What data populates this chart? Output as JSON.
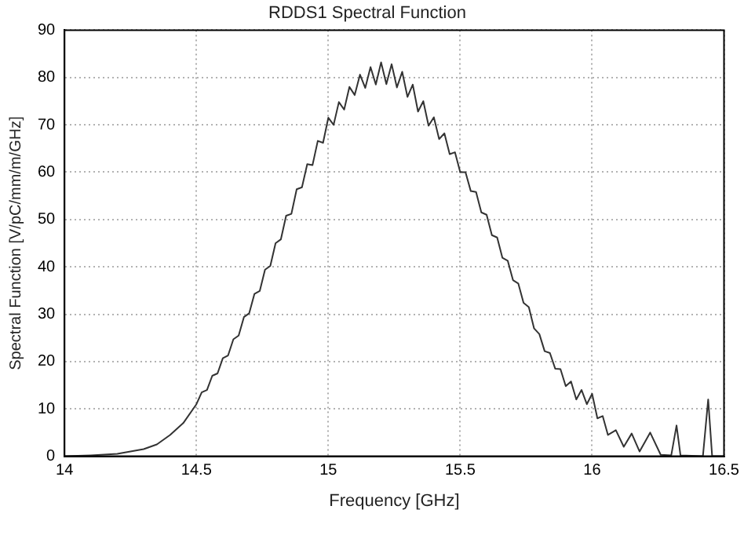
{
  "chart_data": {
    "type": "line",
    "title": "RDDS1 Spectral Function",
    "xlabel": "Frequency [GHz]",
    "ylabel": "Spectral Function [V/pC/mm/m/GHz]",
    "x": [
      14,
      14.1,
      14.2,
      14.3,
      14.35,
      14.4,
      14.45,
      14.5,
      14.52,
      14.54,
      14.56,
      14.58,
      14.6,
      14.62,
      14.64,
      14.66,
      14.68,
      14.7,
      14.72,
      14.74,
      14.76,
      14.78,
      14.8,
      14.82,
      14.84,
      14.86,
      14.88,
      14.9,
      14.92,
      14.94,
      14.96,
      14.98,
      15,
      15.02,
      15.04,
      15.06,
      15.08,
      15.1,
      15.12,
      15.14,
      15.16,
      15.18,
      15.2,
      15.22,
      15.24,
      15.26,
      15.28,
      15.3,
      15.32,
      15.34,
      15.36,
      15.38,
      15.4,
      15.42,
      15.44,
      15.46,
      15.48,
      15.5,
      15.52,
      15.54,
      15.56,
      15.58,
      15.6,
      15.62,
      15.64,
      15.66,
      15.68,
      15.7,
      15.72,
      15.74,
      15.76,
      15.78,
      15.8,
      15.82,
      15.84,
      15.86,
      15.88,
      15.9,
      15.92,
      15.94,
      15.96,
      15.98,
      16,
      16.02,
      16.04,
      16.06,
      16.09,
      16.12,
      16.15,
      16.18,
      16.22,
      16.26,
      16.3,
      16.32,
      16.335,
      16.42,
      16.44,
      16.455,
      16.5
    ],
    "series": [
      {
        "color": "#333333",
        "values": [
          0,
          0.2,
          0.5,
          1.5,
          2.5,
          4.5,
          7,
          11,
          13.5,
          14,
          17,
          17.5,
          20.7,
          21.3,
          24.7,
          25.5,
          29.4,
          30.2,
          34.3,
          34.9,
          39.4,
          40.2,
          45,
          45.8,
          50.8,
          51.2,
          56.4,
          56.8,
          61.7,
          61.5,
          66.6,
          66.2,
          71.5,
          70,
          74.8,
          73.2,
          78,
          76.3,
          80.6,
          77.8,
          82.2,
          78.5,
          83.2,
          78.6,
          82.8,
          77.9,
          81.2,
          75.9,
          78.5,
          72.8,
          75,
          69.8,
          71.6,
          67,
          68.2,
          63.8,
          64.2,
          60,
          60,
          56,
          55.8,
          51.5,
          51,
          46.7,
          46.2,
          41.9,
          41.3,
          37.2,
          36.5,
          32.4,
          31.5,
          27,
          25.8,
          22.2,
          21.8,
          18.5,
          18.4,
          14.8,
          15.8,
          12,
          14,
          11,
          13.2,
          8,
          8.5,
          4.5,
          5.5,
          2,
          4.8,
          1,
          5,
          0.3,
          0.2,
          6.5,
          0.2,
          0,
          12,
          0,
          0
        ]
      }
    ],
    "xlim": [
      14,
      16.5
    ],
    "xticks": [
      14,
      14.5,
      15,
      15.5,
      16,
      16.5
    ],
    "ylim": [
      0,
      90
    ],
    "yticks": [
      0,
      10,
      20,
      30,
      40,
      50,
      60,
      70,
      80,
      90
    ],
    "grid": true,
    "marker": "none",
    "line_style": "solid"
  }
}
